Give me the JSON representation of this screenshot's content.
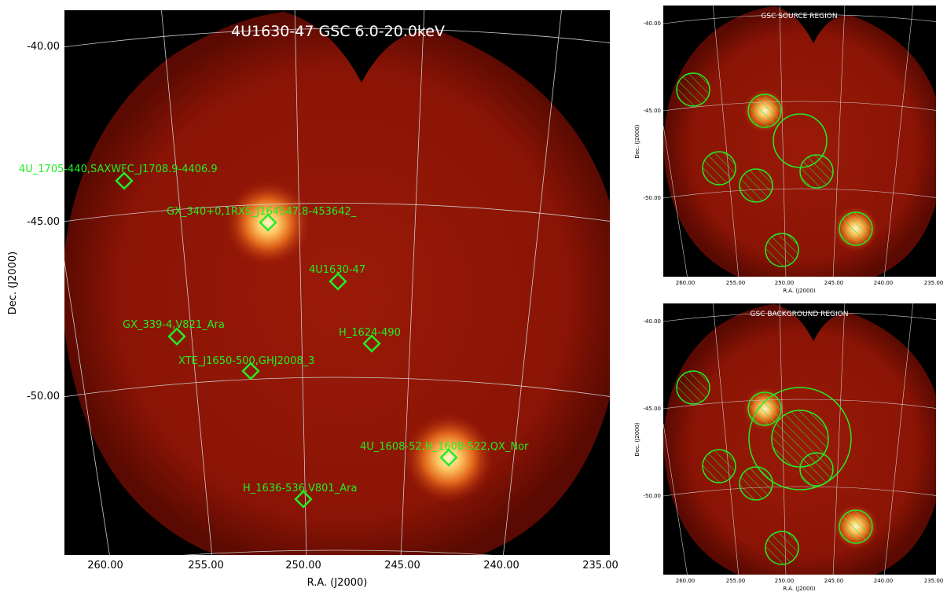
{
  "main": {
    "title": "4U1630-47 GSC 6.0-20.0keV",
    "xlabel": "R.A. (J2000)",
    "ylabel": "Dec. (J2000)",
    "x_ticks": [
      "260.00",
      "255.00",
      "250.00",
      "245.00",
      "240.00",
      "235.00"
    ],
    "y_ticks": [
      "-40.00",
      "-45.00",
      "-50.00"
    ],
    "sources": [
      {
        "label": "4U_1705-440,SAXWFC_J1708.9-4406.9"
      },
      {
        "label": "GX_340+0,1RXS_J164547.8-453642_"
      },
      {
        "label": "4U1630-47"
      },
      {
        "label": "GX_339-4,V821_Ara"
      },
      {
        "label": "H_1624-490"
      },
      {
        "label": "XTE_J1650-500,GHJ2008_3"
      },
      {
        "label": "4U_1608-52,H_1608-522,QX_Nor"
      },
      {
        "label": "H_1636-536,V801_Ara"
      }
    ]
  },
  "insets": [
    {
      "title": "GSC SOURCE REGION",
      "xlabel": "R.A. (J2000)",
      "ylabel": "Dec. (J2000)",
      "x_ticks": [
        "260.00",
        "255.00",
        "250.00",
        "245.00",
        "240.00",
        "235.00"
      ],
      "y_ticks": [
        "-40.00",
        "-45.00",
        "-50.00"
      ]
    },
    {
      "title": "GSC BACKGROUND REGION",
      "xlabel": "R.A. (J2000)",
      "ylabel": "Dec. (J2000)",
      "x_ticks": [
        "260.00",
        "255.00",
        "250.00",
        "245.00",
        "240.00",
        "235.00"
      ],
      "y_ticks": [
        "-40.00",
        "-45.00",
        "-50.00"
      ]
    }
  ],
  "colors": {
    "marker": "#22ee22",
    "background": "#000000",
    "image_base": "#8a1505",
    "grid": "#cccccc"
  }
}
